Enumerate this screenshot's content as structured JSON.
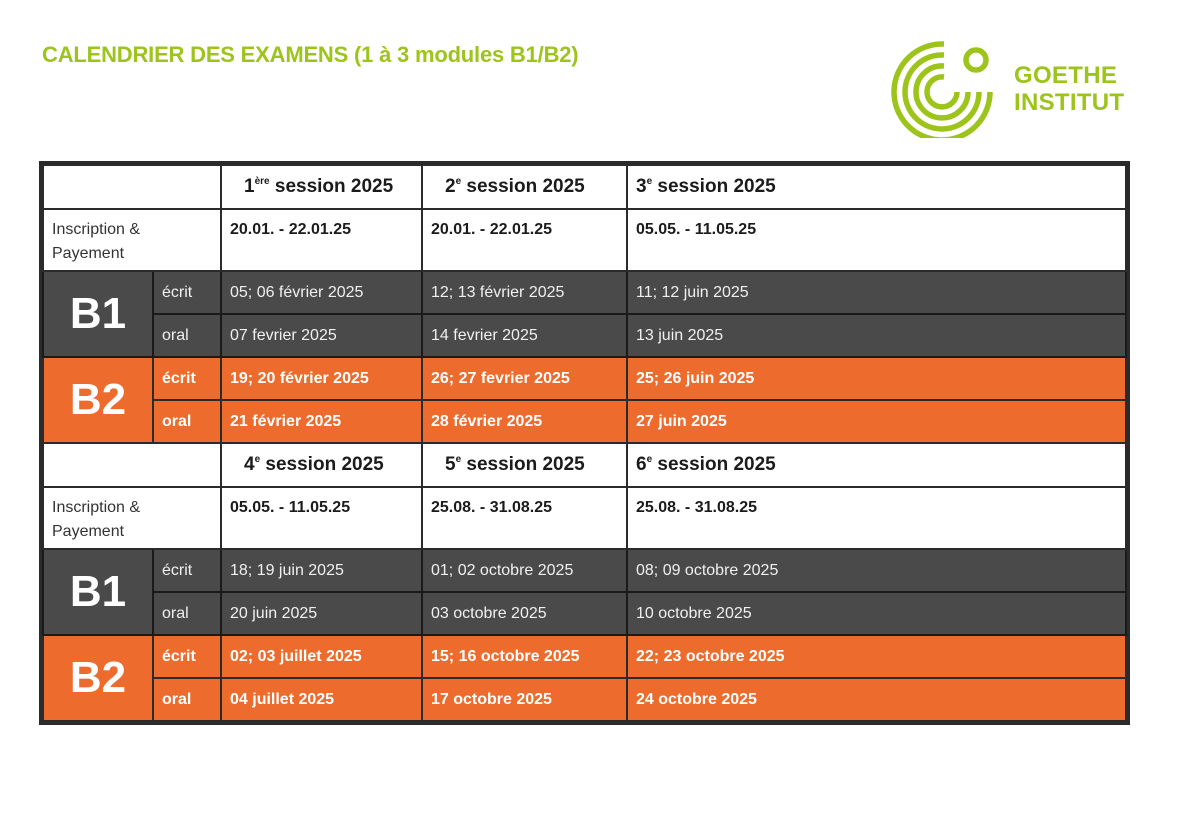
{
  "title": "CALENDRIER DES EXAMENS (1 à 3 modules B1/B2)",
  "logo": {
    "line1": "GOETHE",
    "line2": "INSTITUT",
    "icon": "goethe-spiral-logo",
    "color": "#9dc41a"
  },
  "colors": {
    "b1_row": "#4a4a4a",
    "b2_row": "#ed6c2d",
    "title": "#9dc41a"
  },
  "blocks": [
    {
      "sessions": [
        {
          "num": "1",
          "sup": "ère",
          "label": " session 2025"
        },
        {
          "num": "2",
          "sup": "e",
          "label": " session 2025"
        },
        {
          "num": "3",
          "sup": "e",
          "label": " session 2025"
        }
      ],
      "inscription_label": "Inscription & Payement",
      "inscription": [
        "20.01. - 22.01.25",
        "20.01. - 22.01.25",
        "05.05. - 11.05.25"
      ],
      "b1": {
        "level": "B1",
        "ecrit_label": "écrit",
        "oral_label": "oral",
        "ecrit": [
          "05; 06 février 2025",
          "12; 13 février 2025",
          "11; 12 juin 2025"
        ],
        "oral": [
          "07 fevrier 2025",
          "14 fevrier 2025",
          "13 juin 2025"
        ]
      },
      "b2": {
        "level": "B2",
        "ecrit_label": "écrit",
        "oral_label": "oral",
        "ecrit": [
          "19; 20 février 2025",
          "26; 27 fevrier 2025",
          "25; 26 juin 2025"
        ],
        "oral": [
          "21 février 2025",
          "28 février 2025",
          "27 juin 2025"
        ]
      }
    },
    {
      "sessions": [
        {
          "num": "4",
          "sup": "e",
          "label": " session 2025"
        },
        {
          "num": "5",
          "sup": "e",
          "label": " session 2025"
        },
        {
          "num": "6",
          "sup": "e",
          "label": " session 2025"
        }
      ],
      "inscription_label": "Inscription & Payement",
      "inscription": [
        "05.05. - 11.05.25",
        "25.08. - 31.08.25",
        "25.08. - 31.08.25"
      ],
      "b1": {
        "level": "B1",
        "ecrit_label": "écrit",
        "oral_label": "oral",
        "ecrit": [
          "18; 19 juin 2025",
          "01; 02 octobre 2025",
          "08; 09 octobre 2025"
        ],
        "oral": [
          "20 juin 2025",
          " 03 octobre 2025",
          "10 octobre 2025"
        ]
      },
      "b2": {
        "level": "B2",
        "ecrit_label": "écrit",
        "oral_label": "oral",
        "ecrit": [
          "02; 03 juillet 2025",
          "15; 16 octobre 2025",
          "22; 23 octobre 2025"
        ],
        "oral": [
          "04 juillet 2025",
          "17 octobre 2025",
          "24 octobre 2025"
        ]
      }
    }
  ]
}
